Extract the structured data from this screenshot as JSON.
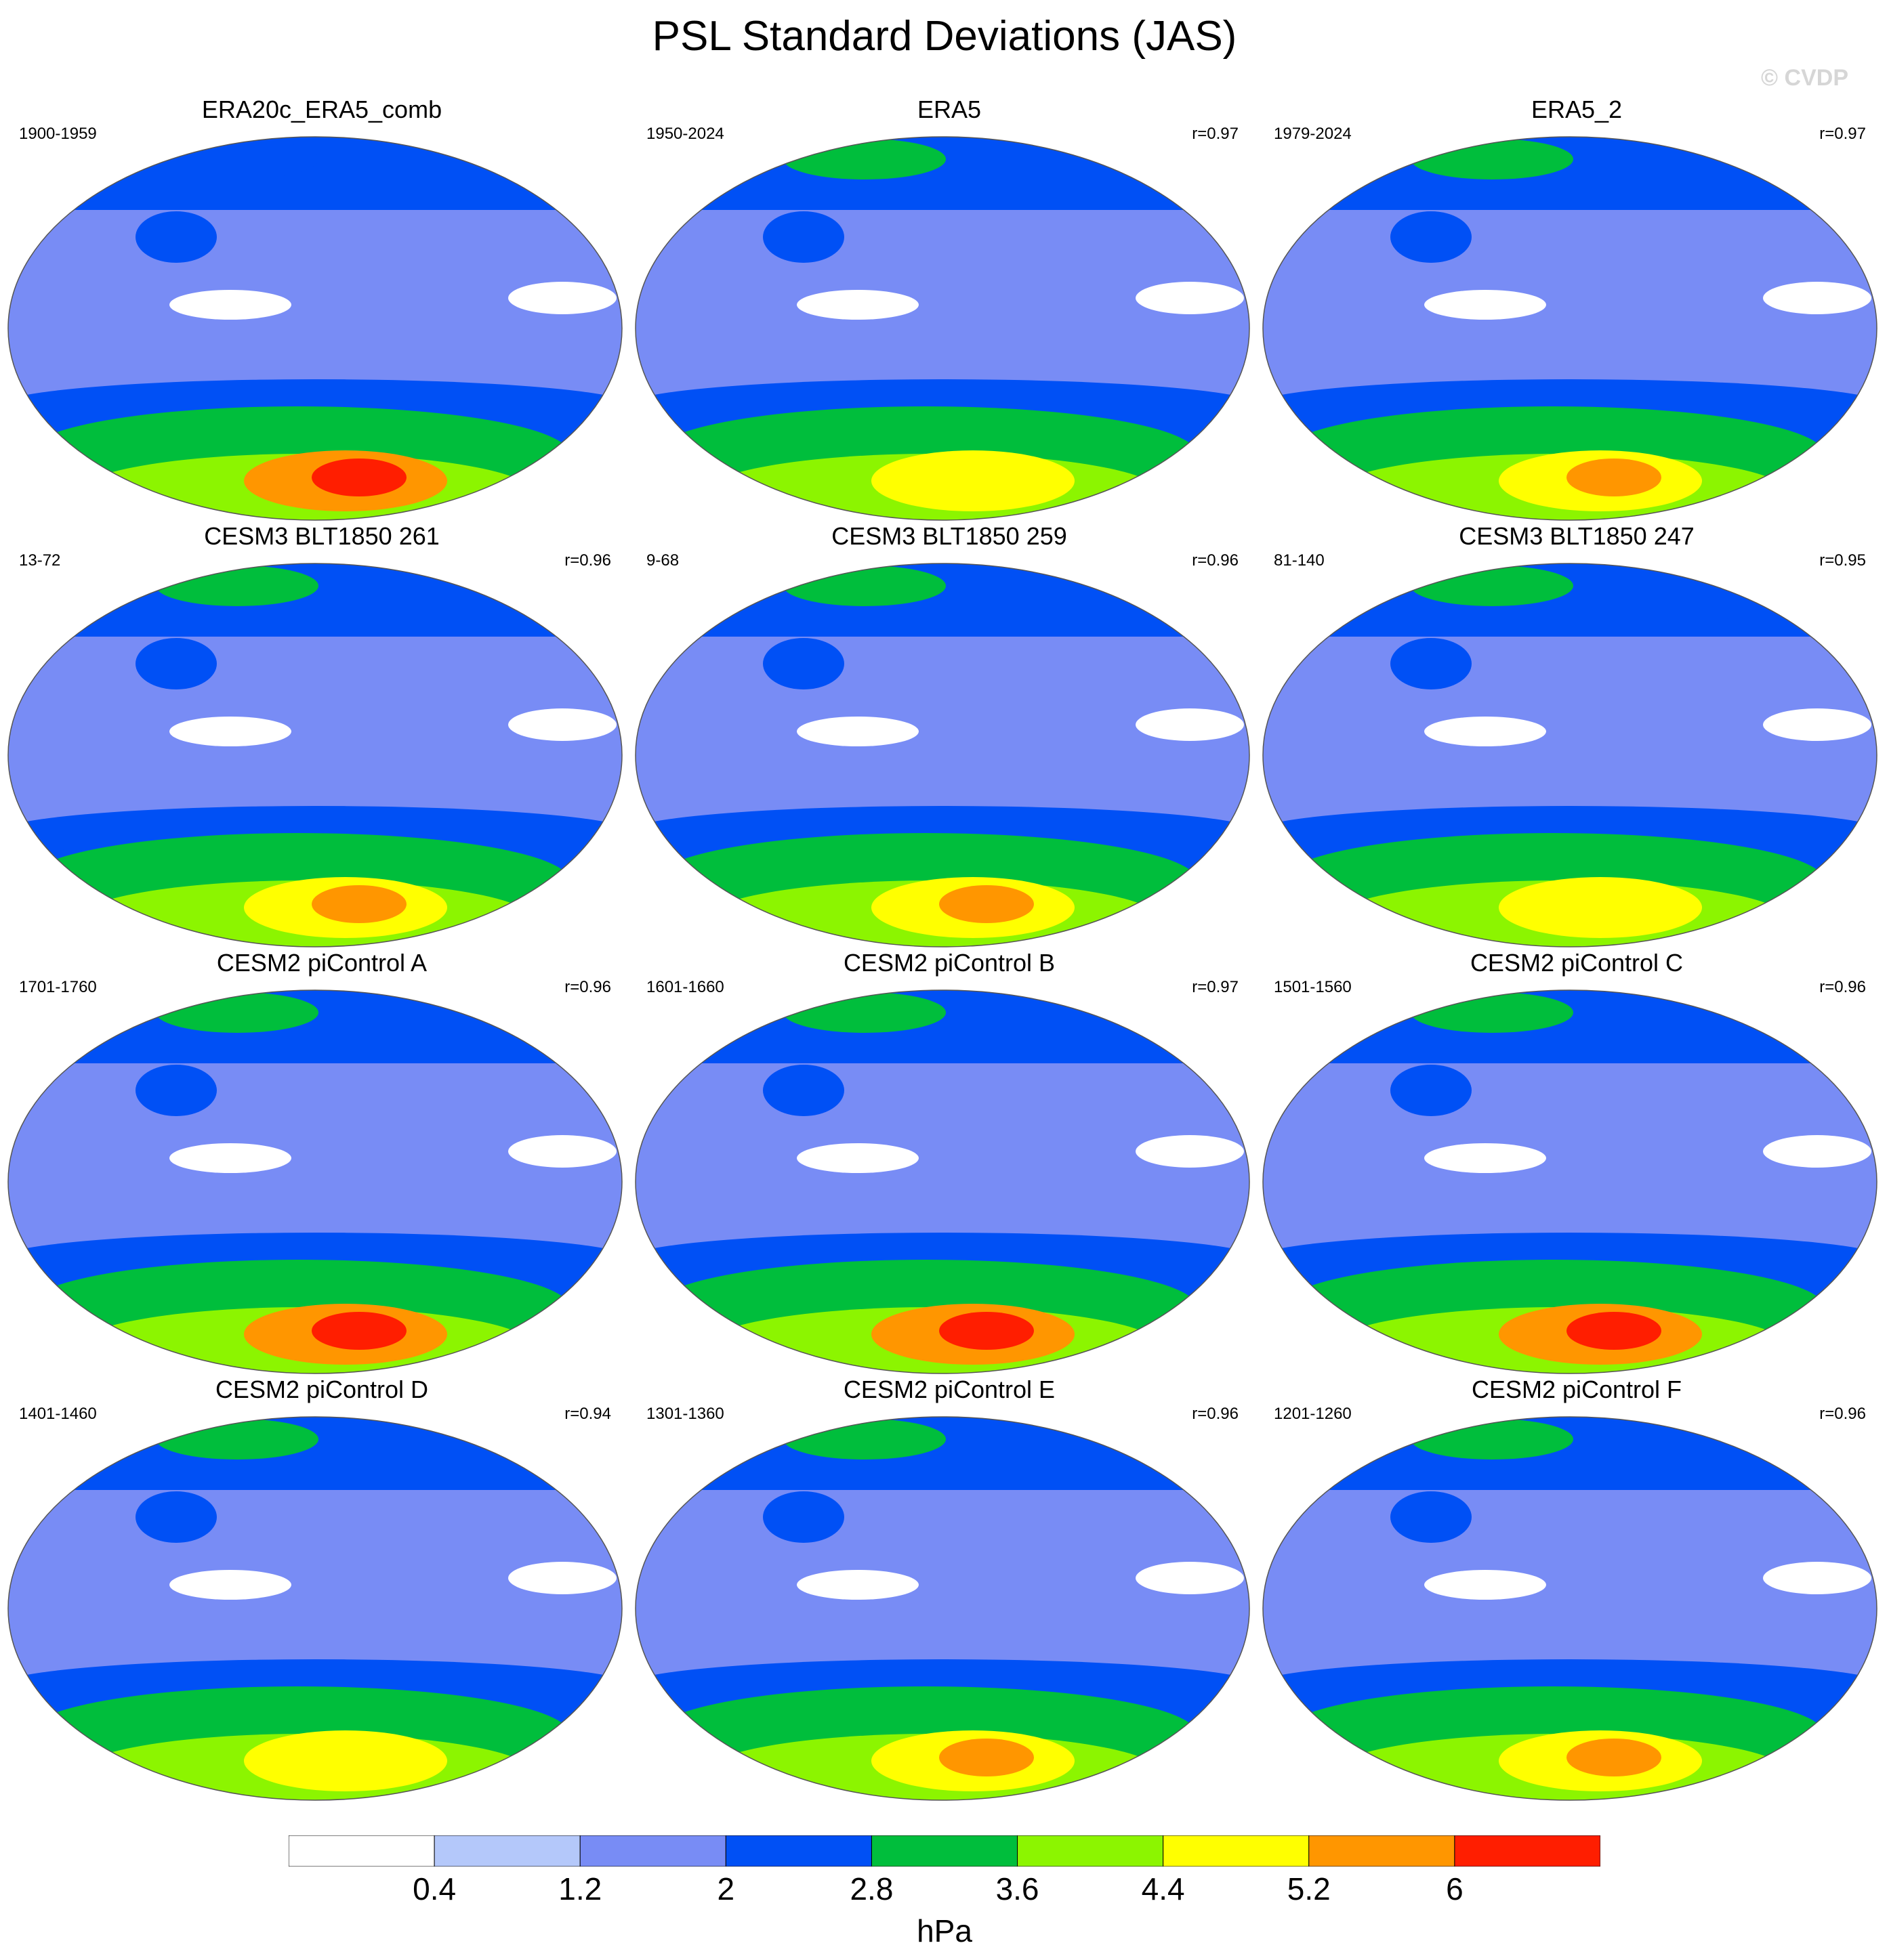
{
  "figure": {
    "title": "PSL Standard Deviations (JAS)",
    "watermark": "© CVDP",
    "units": "hPa"
  },
  "colorbar": {
    "levels": [
      "0.4",
      "1.2",
      "2",
      "2.8",
      "3.6",
      "4.4",
      "5.2",
      "6"
    ],
    "colors": [
      "#ffffff",
      "#b4c8fa",
      "#788cf5",
      "#0050f5",
      "#00be3c",
      "#8cf500",
      "#ffff00",
      "#ff9600",
      "#ff1e00"
    ]
  },
  "chart_data": {
    "type": "heatmap",
    "title": "PSL Standard Deviations (JAS)",
    "variable": "PSL",
    "season": "JAS",
    "units": "hPa",
    "contour_levels": [
      0.4,
      1.2,
      2,
      2.8,
      3.6,
      4.4,
      5.2,
      6
    ],
    "panels": [
      {
        "name": "ERA20c_ERA5_comb",
        "period": "1900-1959",
        "r": "",
        "peak": 6.4,
        "nh_peak": 2.6
      },
      {
        "name": "ERA5",
        "period": "1950-2024",
        "r": "r=0.97",
        "peak": 4.9,
        "nh_peak": 3.0
      },
      {
        "name": "ERA5_2",
        "period": "1979-2024",
        "r": "r=0.97",
        "peak": 5.5,
        "nh_peak": 3.0
      },
      {
        "name": "CESM3 BLT1850 261",
        "period": "13-72",
        "r": "r=0.96",
        "peak": 5.5,
        "nh_peak": 3.0
      },
      {
        "name": "CESM3 BLT1850 259",
        "period": "9-68",
        "r": "r=0.96",
        "peak": 5.5,
        "nh_peak": 3.0
      },
      {
        "name": "CESM3 BLT1850 247",
        "period": "81-140",
        "r": "r=0.95",
        "peak": 4.9,
        "nh_peak": 3.0
      },
      {
        "name": "CESM2 piControl A",
        "period": "1701-1760",
        "r": "r=0.96",
        "peak": 6.3,
        "nh_peak": 3.0
      },
      {
        "name": "CESM2 piControl B",
        "period": "1601-1660",
        "r": "r=0.97",
        "peak": 6.1,
        "nh_peak": 3.0
      },
      {
        "name": "CESM2 piControl C",
        "period": "1501-1560",
        "r": "r=0.96",
        "peak": 6.2,
        "nh_peak": 3.0
      },
      {
        "name": "CESM2 piControl D",
        "period": "1401-1460",
        "r": "r=0.94",
        "peak": 5.0,
        "nh_peak": 3.0
      },
      {
        "name": "CESM2 piControl E",
        "period": "1301-1360",
        "r": "r=0.96",
        "peak": 5.5,
        "nh_peak": 3.0
      },
      {
        "name": "CESM2 piControl F",
        "period": "1201-1260",
        "r": "r=0.96",
        "peak": 5.6,
        "nh_peak": 3.0
      }
    ]
  }
}
